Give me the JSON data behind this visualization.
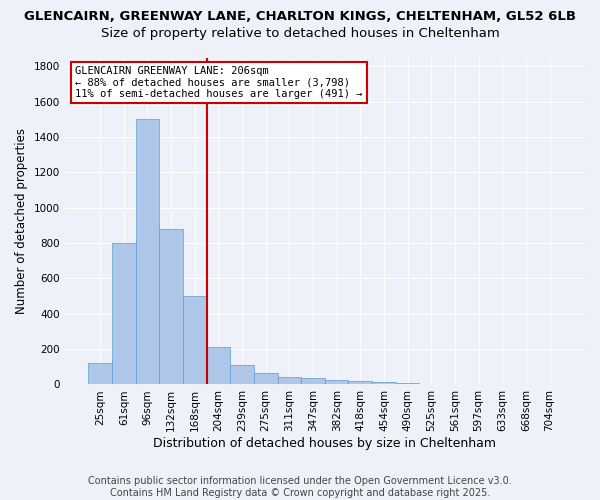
{
  "title1": "GLENCAIRN, GREENWAY LANE, CHARLTON KINGS, CHELTENHAM, GL52 6LB",
  "title2": "Size of property relative to detached houses in Cheltenham",
  "xlabel": "Distribution of detached houses by size in Cheltenham",
  "ylabel": "Number of detached properties",
  "bar_values": [
    120,
    800,
    1500,
    880,
    500,
    210,
    110,
    65,
    45,
    35,
    25,
    20,
    15,
    10,
    5,
    3,
    2,
    1,
    0,
    0
  ],
  "categories": [
    "25sqm",
    "61sqm",
    "96sqm",
    "132sqm",
    "168sqm",
    "204sqm",
    "239sqm",
    "275sqm",
    "311sqm",
    "347sqm",
    "382sqm",
    "418sqm",
    "454sqm",
    "490sqm",
    "525sqm",
    "561sqm",
    "597sqm",
    "633sqm",
    "668sqm",
    "704sqm"
  ],
  "bar_color": "#aec6e8",
  "bar_edge_color": "#5b9bd5",
  "vline_color": "#cc0000",
  "annotation_text": "GLENCAIRN GREENWAY LANE: 206sqm\n← 88% of detached houses are smaller (3,798)\n11% of semi-detached houses are larger (491) →",
  "annotation_box_color": "#ffffff",
  "annotation_box_edge": "#cc0000",
  "ylim": [
    0,
    1850
  ],
  "yticks": [
    0,
    200,
    400,
    600,
    800,
    1000,
    1200,
    1400,
    1600,
    1800
  ],
  "bg_color": "#eef2f8",
  "footer1": "Contains HM Land Registry data © Crown copyright and database right 2025.",
  "footer2": "Contains public sector information licensed under the Open Government Licence v3.0.",
  "title1_fontsize": 9.5,
  "title2_fontsize": 9.5,
  "xlabel_fontsize": 9,
  "ylabel_fontsize": 8.5,
  "tick_fontsize": 7.5,
  "footer_fontsize": 7
}
